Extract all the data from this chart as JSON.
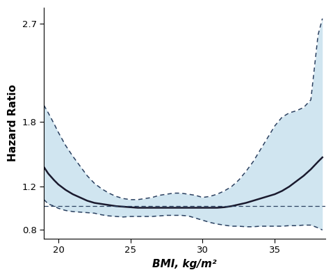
{
  "title": "",
  "xlabel": "BMI, kg/m²",
  "ylabel": "Hazard Ratio",
  "xlim": [
    19.0,
    38.5
  ],
  "ylim": [
    0.72,
    2.85
  ],
  "xticks": [
    20,
    25,
    30,
    35
  ],
  "yticks": [
    0.8,
    1.2,
    1.8,
    2.7
  ],
  "ref_line_y": 1.02,
  "fill_color": "#b8d8e8",
  "fill_alpha": 0.65,
  "line_color": "#1a1a2e",
  "dash_color": "#2a4060",
  "background_color": "#ffffff",
  "xlabel_fontsize": 11,
  "ylabel_fontsize": 11,
  "bmi_x": [
    19.0,
    19.3,
    19.7,
    20.0,
    20.5,
    21.0,
    21.5,
    22.0,
    22.5,
    23.0,
    23.5,
    24.0,
    24.5,
    25.0,
    25.5,
    26.0,
    26.5,
    27.0,
    27.5,
    28.0,
    28.5,
    29.0,
    29.5,
    30.0,
    30.5,
    31.0,
    31.5,
    32.0,
    32.5,
    33.0,
    33.5,
    34.0,
    34.5,
    35.0,
    35.5,
    36.0,
    36.5,
    37.0,
    37.5,
    38.0,
    38.3
  ],
  "hr_mean": [
    1.38,
    1.32,
    1.26,
    1.22,
    1.17,
    1.13,
    1.1,
    1.07,
    1.05,
    1.04,
    1.03,
    1.02,
    1.015,
    1.01,
    1.005,
    1.005,
    1.005,
    1.005,
    1.005,
    1.005,
    1.005,
    1.005,
    1.005,
    1.005,
    1.005,
    1.005,
    1.01,
    1.02,
    1.035,
    1.05,
    1.07,
    1.09,
    1.11,
    1.13,
    1.16,
    1.2,
    1.25,
    1.3,
    1.36,
    1.43,
    1.47
  ],
  "hr_upper": [
    1.95,
    1.88,
    1.78,
    1.7,
    1.58,
    1.48,
    1.39,
    1.3,
    1.23,
    1.18,
    1.14,
    1.11,
    1.09,
    1.08,
    1.08,
    1.09,
    1.1,
    1.12,
    1.13,
    1.14,
    1.14,
    1.13,
    1.12,
    1.1,
    1.11,
    1.13,
    1.16,
    1.2,
    1.26,
    1.34,
    1.43,
    1.54,
    1.65,
    1.76,
    1.84,
    1.88,
    1.9,
    1.93,
    2.0,
    2.6,
    2.75
  ],
  "hr_lower": [
    1.08,
    1.04,
    1.02,
    1.0,
    0.98,
    0.97,
    0.965,
    0.96,
    0.955,
    0.94,
    0.93,
    0.925,
    0.92,
    0.925,
    0.925,
    0.925,
    0.925,
    0.93,
    0.935,
    0.935,
    0.935,
    0.93,
    0.91,
    0.89,
    0.87,
    0.855,
    0.845,
    0.835,
    0.835,
    0.83,
    0.83,
    0.835,
    0.835,
    0.835,
    0.835,
    0.84,
    0.84,
    0.845,
    0.845,
    0.82,
    0.8
  ]
}
